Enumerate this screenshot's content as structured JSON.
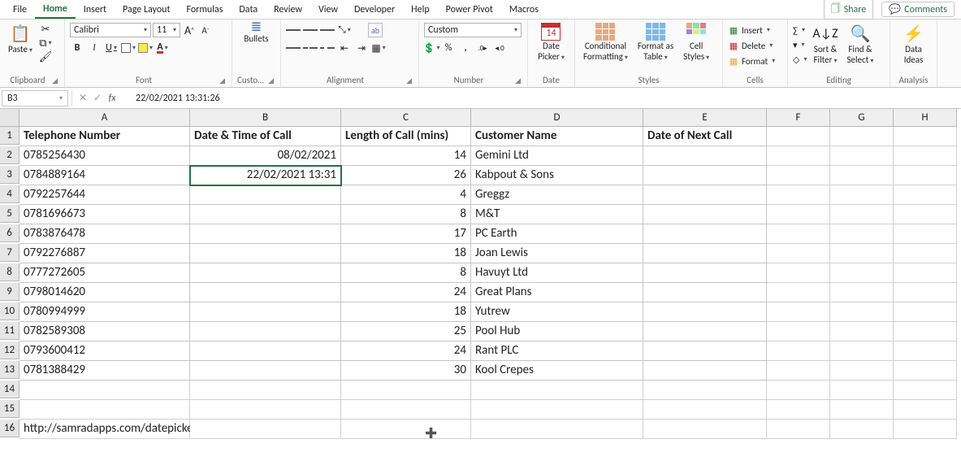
{
  "menu": {
    "tabs": [
      "File",
      "Home",
      "Insert",
      "Page Layout",
      "Formulas",
      "Data",
      "Review",
      "View",
      "Developer",
      "Help",
      "Power Pivot",
      "Macros"
    ],
    "active_index": 1,
    "share": "Share",
    "comments": "Comments"
  },
  "ribbon": {
    "clipboard": {
      "paste": "Paste",
      "label": "Clipboard"
    },
    "font": {
      "name": "Calibri",
      "size": "11",
      "bold_glyph": "B",
      "italic_glyph": "I",
      "underline_glyph": "U",
      "fontcolor_glyph": "A",
      "grow_glyph": "A▴",
      "shrink_glyph": "A▾",
      "label": "Font"
    },
    "bullets": {
      "title": "Bullets",
      "label": "Custom Fo…"
    },
    "alignment": {
      "label": "Alignment",
      "wrap_glyph": "ab"
    },
    "number": {
      "format": "Custom",
      "percent_glyph": "%",
      "comma_glyph": ",",
      "inc_glyph": ".00→.0",
      "dec_glyph": ".0→.00",
      "label": "Number"
    },
    "date": {
      "day": "14",
      "title": "Date",
      "sub": "Picker",
      "label": "Date"
    },
    "styles": {
      "cond": "Conditional",
      "cond2": "Formatting",
      "fmt": "Format as",
      "fmt2": "Table",
      "cell": "Cell",
      "cell2": "Styles",
      "label": "Styles"
    },
    "cells": {
      "insert": "Insert",
      "delete": "Delete",
      "format": "Format",
      "label": "Cells"
    },
    "editing": {
      "sort": "Sort &",
      "sort2": "Filter",
      "find": "Find &",
      "find2": "Select",
      "label": "Editing"
    },
    "ideas": {
      "title": "Data",
      "sub": "Ideas",
      "label": "Analysis"
    }
  },
  "formula_bar": {
    "cell_ref": "B3",
    "value": "22/02/2021  13:31:26"
  },
  "grid": {
    "col_letters": [
      "A",
      "B",
      "C",
      "D",
      "E",
      "F",
      "G",
      "H"
    ],
    "headers": [
      "Telephone Number",
      "Date & Time of Call",
      "Length of Call (mins)",
      "Customer Name",
      "Date of Next Call"
    ],
    "rows": [
      {
        "phone": "0785256430",
        "dt": "08/02/2021",
        "len": "14",
        "cust": "Gemini Ltd",
        "next": ""
      },
      {
        "phone": "0784889164",
        "dt": "22/02/2021 13:31",
        "len": "26",
        "cust": "Kabpout & Sons",
        "next": ""
      },
      {
        "phone": "0792257644",
        "dt": "",
        "len": "4",
        "cust": "Greggz",
        "next": ""
      },
      {
        "phone": "0781696673",
        "dt": "",
        "len": "8",
        "cust": "M&T",
        "next": ""
      },
      {
        "phone": "0783876478",
        "dt": "",
        "len": "17",
        "cust": "PC Earth",
        "next": ""
      },
      {
        "phone": "0792276887",
        "dt": "",
        "len": "18",
        "cust": "Joan Lewis",
        "next": ""
      },
      {
        "phone": "0777272605",
        "dt": "",
        "len": "8",
        "cust": "Havuyt Ltd",
        "next": ""
      },
      {
        "phone": "0798014620",
        "dt": "",
        "len": "24",
        "cust": "Great Plans",
        "next": ""
      },
      {
        "phone": "0780994999",
        "dt": "",
        "len": "18",
        "cust": "Yutrew",
        "next": ""
      },
      {
        "phone": "0782589308",
        "dt": "",
        "len": "25",
        "cust": "Pool Hub",
        "next": ""
      },
      {
        "phone": "0793600412",
        "dt": "",
        "len": "24",
        "cust": "Rant PLC",
        "next": ""
      },
      {
        "phone": "0781388429",
        "dt": "",
        "len": "30",
        "cust": "Kool Crepes",
        "next": ""
      }
    ],
    "selected_row_index": 1,
    "dp_mini": "14",
    "url_row": "http://samradapps.com/datepicker"
  },
  "colors": {
    "excel_green": "#217346",
    "calendar_red": "#c53030"
  }
}
